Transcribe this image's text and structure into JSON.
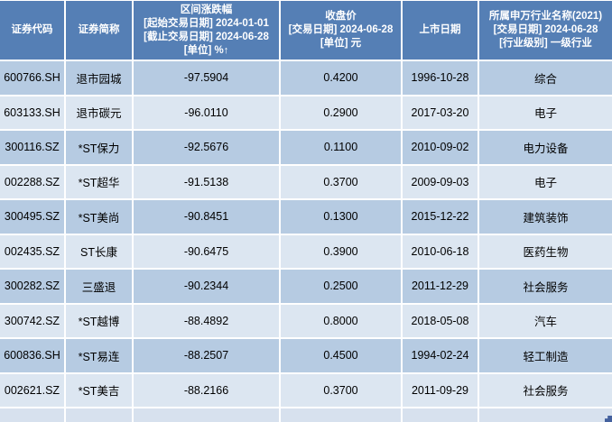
{
  "table": {
    "headers": {
      "code": "证券代码",
      "name": "证券简称",
      "change": "区间涨跌幅\n[起始交易日期] 2024-01-01\n[截止交易日期] 2024-06-28\n[单位] %",
      "change_sort_indicator": "↑",
      "close": "收盘价\n[交易日期] 2024-06-28\n[单位] 元",
      "list_date": "上市日期",
      "industry": "所属申万行业名称(2021)\n[交易日期] 2024-06-28\n[行业级别] 一级行业"
    },
    "rows": [
      {
        "code": "600766.SH",
        "name": "退市园城",
        "change": "-97.5904",
        "close": "0.4200",
        "list_date": "1996-10-28",
        "industry": "综合"
      },
      {
        "code": "603133.SH",
        "name": "退市碳元",
        "change": "-96.0110",
        "close": "0.2900",
        "list_date": "2017-03-20",
        "industry": "电子"
      },
      {
        "code": "300116.SZ",
        "name": "*ST保力",
        "change": "-92.5676",
        "close": "0.1100",
        "list_date": "2010-09-02",
        "industry": "电力设备"
      },
      {
        "code": "002288.SZ",
        "name": "*ST超华",
        "change": "-91.5138",
        "close": "0.3700",
        "list_date": "2009-09-03",
        "industry": "电子"
      },
      {
        "code": "300495.SZ",
        "name": "*ST美尚",
        "change": "-90.8451",
        "close": "0.1300",
        "list_date": "2015-12-22",
        "industry": "建筑装饰"
      },
      {
        "code": "002435.SZ",
        "name": "ST长康",
        "change": "-90.6475",
        "close": "0.3900",
        "list_date": "2010-06-18",
        "industry": "医药生物"
      },
      {
        "code": "300282.SZ",
        "name": "三盛退",
        "change": "-90.2344",
        "close": "0.2500",
        "list_date": "2011-12-29",
        "industry": "社会服务"
      },
      {
        "code": "300742.SZ",
        "name": "*ST越博",
        "change": "-88.4892",
        "close": "0.8000",
        "list_date": "2018-05-08",
        "industry": "汽车"
      },
      {
        "code": "600836.SH",
        "name": "*ST易连",
        "change": "-88.2507",
        "close": "0.4500",
        "list_date": "1994-02-24",
        "industry": "轻工制造"
      },
      {
        "code": "002621.SZ",
        "name": "*ST美吉",
        "change": "-88.2166",
        "close": "0.3700",
        "list_date": "2011-09-29",
        "industry": "社会服务"
      }
    ]
  },
  "colors": {
    "header_bg": "#557FB5",
    "row_odd_bg": "#B6CBE2",
    "row_even_bg": "#DCE6F1",
    "gridline": "#FFFFFF",
    "header_text": "#FFFFFF",
    "body_text": "#000000",
    "partial_row_bg": "#D7E1EE",
    "corner_mark": "#44619E"
  }
}
